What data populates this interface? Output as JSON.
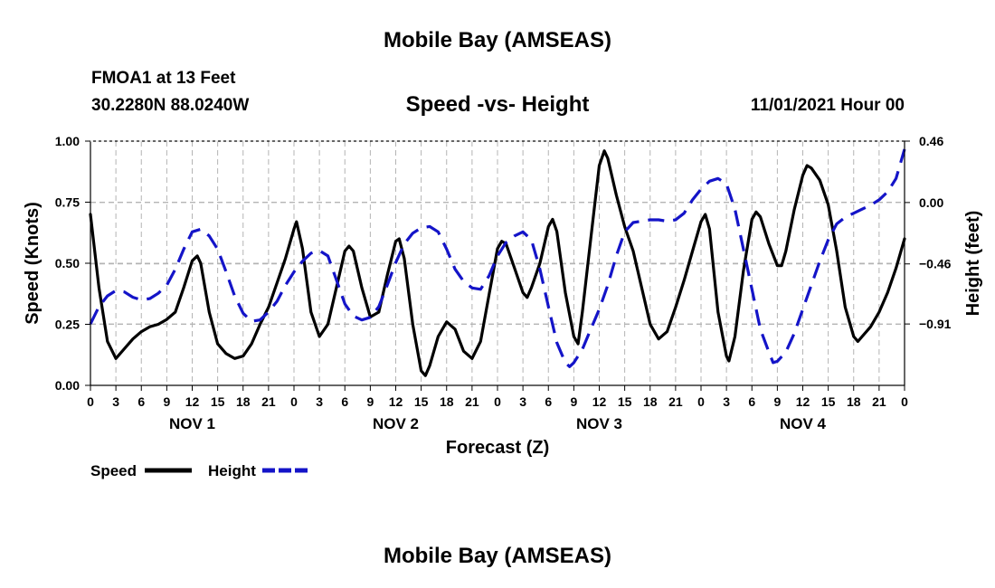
{
  "page": {
    "title": "Mobile Bay (AMSEAS)",
    "station": "FMOA1 at 13 Feet",
    "coords": "30.2280N  88.0240W",
    "subtitle": "Speed -vs- Height",
    "date": "11/01/2021 Hour 00",
    "bottom_title": "Mobile Bay (AMSEAS)"
  },
  "colors": {
    "speed": "#000000",
    "height": "#1414c8",
    "grid": "#b4b4b4"
  },
  "chart_data": {
    "type": "line",
    "title": "Speed -vs- Height",
    "xlabel": "Forecast (Z)",
    "ylabel": "Speed (Knots)",
    "y2label": "Height (feet)",
    "xlim": [
      0,
      96
    ],
    "ylim": [
      0,
      1
    ],
    "y2lim": [
      -1.37,
      0.46
    ],
    "x_ticks": [
      0,
      3,
      6,
      9,
      12,
      15,
      18,
      21,
      24,
      27,
      30,
      33,
      36,
      39,
      42,
      45,
      48,
      51,
      54,
      57,
      60,
      63,
      66,
      69,
      72,
      75,
      78,
      81,
      84,
      87,
      90,
      93,
      96
    ],
    "x_tick_labels": [
      "0",
      "3",
      "6",
      "9",
      "12",
      "15",
      "18",
      "21",
      "0",
      "3",
      "6",
      "9",
      "12",
      "15",
      "18",
      "21",
      "0",
      "3",
      "6",
      "9",
      "12",
      "15",
      "18",
      "21",
      "0",
      "3",
      "6",
      "9",
      "12",
      "15",
      "18",
      "21",
      "0"
    ],
    "day_labels": [
      {
        "x": 12,
        "label": "NOV 1"
      },
      {
        "x": 36,
        "label": "NOV 2"
      },
      {
        "x": 60,
        "label": "NOV 3"
      },
      {
        "x": 84,
        "label": "NOV 4"
      }
    ],
    "y_ticks": [
      0,
      0.25,
      0.5,
      0.75,
      1.0
    ],
    "y_tick_labels": [
      "0.00",
      "0.25",
      "0.50",
      "0.75",
      "1.00"
    ],
    "y2_ticks": [
      0.46,
      0.0,
      -0.46,
      -0.91
    ],
    "y2_tick_labels": [
      "0.46",
      "0.00",
      "-0.46",
      "-0.91"
    ],
    "grid": true,
    "series": [
      {
        "name": "Speed",
        "axis": "left",
        "style": "solid",
        "points": [
          [
            0,
            0.7
          ],
          [
            1,
            0.4
          ],
          [
            2,
            0.18
          ],
          [
            3,
            0.11
          ],
          [
            4,
            0.15
          ],
          [
            5,
            0.19
          ],
          [
            6,
            0.22
          ],
          [
            7,
            0.24
          ],
          [
            8,
            0.25
          ],
          [
            9,
            0.27
          ],
          [
            10,
            0.3
          ],
          [
            11,
            0.4
          ],
          [
            12,
            0.51
          ],
          [
            12.6,
            0.53
          ],
          [
            13,
            0.5
          ],
          [
            14,
            0.3
          ],
          [
            15,
            0.17
          ],
          [
            16,
            0.13
          ],
          [
            17,
            0.11
          ],
          [
            18,
            0.12
          ],
          [
            19,
            0.17
          ],
          [
            20,
            0.25
          ],
          [
            21,
            0.32
          ],
          [
            22,
            0.42
          ],
          [
            23,
            0.52
          ],
          [
            24,
            0.64
          ],
          [
            24.3,
            0.67
          ],
          [
            25,
            0.56
          ],
          [
            26,
            0.3
          ],
          [
            27,
            0.2
          ],
          [
            28,
            0.25
          ],
          [
            29,
            0.4
          ],
          [
            30,
            0.55
          ],
          [
            30.5,
            0.57
          ],
          [
            31,
            0.55
          ],
          [
            32,
            0.4
          ],
          [
            33,
            0.28
          ],
          [
            34,
            0.3
          ],
          [
            35,
            0.45
          ],
          [
            36,
            0.59
          ],
          [
            36.4,
            0.6
          ],
          [
            37,
            0.52
          ],
          [
            38,
            0.25
          ],
          [
            39,
            0.06
          ],
          [
            39.5,
            0.04
          ],
          [
            40,
            0.08
          ],
          [
            41,
            0.2
          ],
          [
            42,
            0.26
          ],
          [
            43,
            0.23
          ],
          [
            44,
            0.14
          ],
          [
            45,
            0.11
          ],
          [
            46,
            0.18
          ],
          [
            47,
            0.37
          ],
          [
            48,
            0.56
          ],
          [
            48.5,
            0.59
          ],
          [
            49,
            0.58
          ],
          [
            50,
            0.48
          ],
          [
            51,
            0.38
          ],
          [
            51.5,
            0.36
          ],
          [
            52,
            0.4
          ],
          [
            53,
            0.5
          ],
          [
            54,
            0.65
          ],
          [
            54.5,
            0.68
          ],
          [
            55,
            0.63
          ],
          [
            56,
            0.38
          ],
          [
            57,
            0.2
          ],
          [
            57.5,
            0.17
          ],
          [
            58,
            0.3
          ],
          [
            59,
            0.6
          ],
          [
            60,
            0.9
          ],
          [
            60.6,
            0.96
          ],
          [
            61,
            0.93
          ],
          [
            62,
            0.78
          ],
          [
            63,
            0.65
          ],
          [
            64,
            0.55
          ],
          [
            65,
            0.4
          ],
          [
            66,
            0.25
          ],
          [
            67,
            0.19
          ],
          [
            68,
            0.22
          ],
          [
            69,
            0.32
          ],
          [
            70,
            0.43
          ],
          [
            71,
            0.55
          ],
          [
            72,
            0.67
          ],
          [
            72.5,
            0.7
          ],
          [
            73,
            0.64
          ],
          [
            74,
            0.3
          ],
          [
            75,
            0.12
          ],
          [
            75.3,
            0.1
          ],
          [
            76,
            0.2
          ],
          [
            77,
            0.47
          ],
          [
            78,
            0.68
          ],
          [
            78.5,
            0.71
          ],
          [
            79,
            0.69
          ],
          [
            80,
            0.58
          ],
          [
            81,
            0.49
          ],
          [
            81.5,
            0.49
          ],
          [
            82,
            0.55
          ],
          [
            83,
            0.72
          ],
          [
            84,
            0.86
          ],
          [
            84.5,
            0.9
          ],
          [
            85,
            0.89
          ],
          [
            86,
            0.84
          ],
          [
            87,
            0.74
          ],
          [
            88,
            0.55
          ],
          [
            89,
            0.32
          ],
          [
            90,
            0.2
          ],
          [
            90.5,
            0.18
          ],
          [
            91,
            0.2
          ],
          [
            92,
            0.24
          ],
          [
            93,
            0.3
          ],
          [
            94,
            0.38
          ],
          [
            95,
            0.48
          ],
          [
            96,
            0.6
          ]
        ]
      },
      {
        "name": "Height",
        "axis": "right",
        "style": "dashed",
        "points": [
          [
            0,
            -0.91
          ],
          [
            1,
            -0.78
          ],
          [
            2,
            -0.7
          ],
          [
            3,
            -0.66
          ],
          [
            4,
            -0.67
          ],
          [
            5,
            -0.71
          ],
          [
            6,
            -0.73
          ],
          [
            7,
            -0.72
          ],
          [
            8,
            -0.68
          ],
          [
            9,
            -0.62
          ],
          [
            10,
            -0.5
          ],
          [
            11,
            -0.35
          ],
          [
            12,
            -0.22
          ],
          [
            13,
            -0.2
          ],
          [
            14,
            -0.25
          ],
          [
            15,
            -0.35
          ],
          [
            16,
            -0.52
          ],
          [
            17,
            -0.7
          ],
          [
            18,
            -0.83
          ],
          [
            19,
            -0.89
          ],
          [
            20,
            -0.88
          ],
          [
            21,
            -0.82
          ],
          [
            22,
            -0.74
          ],
          [
            23,
            -0.62
          ],
          [
            24,
            -0.52
          ],
          [
            25,
            -0.44
          ],
          [
            26,
            -0.38
          ],
          [
            27,
            -0.36
          ],
          [
            28,
            -0.4
          ],
          [
            29,
            -0.58
          ],
          [
            30,
            -0.76
          ],
          [
            31,
            -0.85
          ],
          [
            32,
            -0.88
          ],
          [
            33,
            -0.86
          ],
          [
            34,
            -0.78
          ],
          [
            35,
            -0.62
          ],
          [
            36,
            -0.45
          ],
          [
            37,
            -0.31
          ],
          [
            38,
            -0.23
          ],
          [
            39,
            -0.19
          ],
          [
            40,
            -0.18
          ],
          [
            41,
            -0.22
          ],
          [
            42,
            -0.35
          ],
          [
            43,
            -0.5
          ],
          [
            44,
            -0.59
          ],
          [
            45,
            -0.64
          ],
          [
            46,
            -0.65
          ],
          [
            47,
            -0.55
          ],
          [
            48,
            -0.4
          ],
          [
            49,
            -0.3
          ],
          [
            50,
            -0.25
          ],
          [
            51,
            -0.22
          ],
          [
            52,
            -0.28
          ],
          [
            53,
            -0.5
          ],
          [
            54,
            -0.78
          ],
          [
            55,
            -1.05
          ],
          [
            56,
            -1.2
          ],
          [
            56.5,
            -1.23
          ],
          [
            57,
            -1.2
          ],
          [
            58,
            -1.1
          ],
          [
            59,
            -0.95
          ],
          [
            60,
            -0.8
          ],
          [
            61,
            -0.62
          ],
          [
            62,
            -0.4
          ],
          [
            63,
            -0.22
          ],
          [
            64,
            -0.15
          ],
          [
            65,
            -0.14
          ],
          [
            66,
            -0.13
          ],
          [
            67,
            -0.13
          ],
          [
            68,
            -0.14
          ],
          [
            69,
            -0.13
          ],
          [
            70,
            -0.08
          ],
          [
            71,
            0.02
          ],
          [
            72,
            0.1
          ],
          [
            73,
            0.16
          ],
          [
            74,
            0.18
          ],
          [
            75,
            0.14
          ],
          [
            76,
            -0.05
          ],
          [
            77,
            -0.35
          ],
          [
            78,
            -0.65
          ],
          [
            79,
            -0.95
          ],
          [
            80,
            -1.12
          ],
          [
            80.5,
            -1.2
          ],
          [
            81,
            -1.19
          ],
          [
            82,
            -1.12
          ],
          [
            83,
            -0.98
          ],
          [
            84,
            -0.8
          ],
          [
            85,
            -0.62
          ],
          [
            86,
            -0.44
          ],
          [
            87,
            -0.28
          ],
          [
            88,
            -0.16
          ],
          [
            89,
            -0.11
          ],
          [
            90,
            -0.08
          ],
          [
            91,
            -0.05
          ],
          [
            92,
            -0.02
          ],
          [
            93,
            0.02
          ],
          [
            94,
            0.08
          ],
          [
            95,
            0.18
          ],
          [
            96,
            0.4
          ]
        ]
      }
    ],
    "legend": [
      {
        "label": "Speed",
        "style": "solid"
      },
      {
        "label": "Height",
        "style": "dashed"
      }
    ],
    "legend_position": "bottom-left"
  }
}
